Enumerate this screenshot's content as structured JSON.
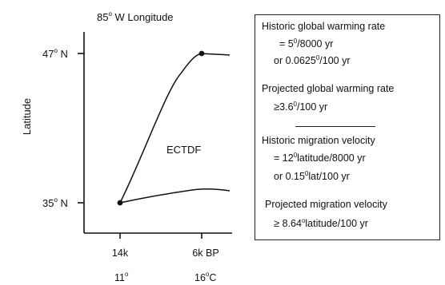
{
  "diagram": {
    "title": {
      "value": "85",
      "deg": "o",
      "rest": " W Longitude"
    },
    "y_axis_label": "Latitude",
    "center_label": "ECTDF",
    "y_ticks": [
      {
        "value": "47",
        "deg": "o",
        "unit": " N"
      },
      {
        "value": "35",
        "deg": "o",
        "unit": " N"
      }
    ],
    "x_ticks": [
      {
        "time": "14k",
        "temp_value": "11",
        "temp_deg": "o",
        "temp_unit": ""
      },
      {
        "time": "6k BP",
        "temp_value": "16",
        "temp_deg": "o",
        "temp_unit": "C"
      }
    ]
  },
  "info": {
    "historic_rate_label": "Historic  global warming rate",
    "historic_rate_line1": {
      "prefix": "=  5",
      "sup": "0",
      "suffix": "/8000  yr"
    },
    "historic_rate_line2": {
      "prefix": "or  0.0625",
      "sup": "0",
      "suffix": "/100  yr"
    },
    "projected_rate_label": "Projected  global warming rate",
    "projected_rate_value": {
      "sym": "≥",
      "prefix": "3.6",
      "sup": "0",
      "suffix": "/100  yr"
    },
    "historic_velocity_label": "Historic  migration velocity",
    "historic_velocity_line1": {
      "prefix": "=  12",
      "sup": "0",
      "suffix": "latitude/8000  yr"
    },
    "historic_velocity_line2": {
      "prefix": "or  0.15",
      "sup": "0",
      "suffix": "lat/100 yr"
    },
    "projected_velocity_label": "Projected  migration  velocity",
    "projected_velocity_value": {
      "sym": "≥",
      "prefix": "  8.64",
      "sup": "o",
      "suffix": "latitude/100  yr"
    }
  }
}
